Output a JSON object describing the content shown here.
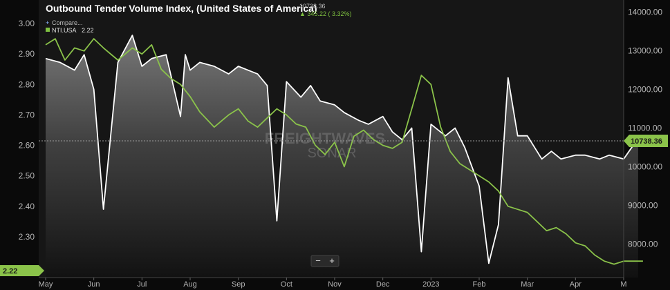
{
  "chart_data": {
    "type": "line",
    "title": "Outbound Tender Volume Index, (United States of America)",
    "header_value": "10738.36",
    "header_change": "345.22 ( 3.32%)",
    "legend": {
      "compare_label": "Compare...",
      "series_label": "NTI.USA",
      "series_value": "2.22"
    },
    "x_ticks": [
      "May",
      "Jun",
      "Jul",
      "Aug",
      "Sep",
      "Oct",
      "Nov",
      "Dec",
      "2023",
      "Feb",
      "Mar",
      "Apr",
      "M"
    ],
    "left_axis": {
      "ticks": [
        "3.00",
        "2.90",
        "2.80",
        "2.70",
        "2.60",
        "2.50",
        "2.40",
        "2.30"
      ],
      "range": [
        2.2,
        3.05
      ]
    },
    "right_axis": {
      "ticks": [
        "14000.00",
        "13000.00",
        "12000.00",
        "11000.00",
        "10000.00",
        "9000.00",
        "8000.00"
      ],
      "range": [
        7400,
        14100
      ]
    },
    "current_left_label": "2.22",
    "current_right_label": "10738.36",
    "watermark_lines": [
      "FREIGHTWAVES",
      "SONAR"
    ],
    "zoom": {
      "minus": "−",
      "plus": "+"
    },
    "series": [
      {
        "axis": "right",
        "x": [
          0,
          0.3,
          0.6,
          0.8,
          1,
          1.2,
          1.5,
          1.8,
          2,
          2.2,
          2.5,
          2.8,
          2.9,
          3,
          3.2,
          3.5,
          3.8,
          4,
          4.2,
          4.4,
          4.6,
          4.8,
          5,
          5.3,
          5.5,
          5.7,
          6,
          6.2,
          6.5,
          6.7,
          7,
          7.2,
          7.4,
          7.6,
          7.8,
          8,
          8.3,
          8.5,
          8.7,
          9,
          9.2,
          9.4,
          9.6,
          9.8,
          10,
          10.3,
          10.5,
          10.7,
          11,
          11.2,
          11.5,
          11.7,
          12,
          12.3
        ],
        "y": [
          12800,
          12700,
          12500,
          12900,
          12000,
          8900,
          12700,
          13400,
          12600,
          12800,
          12900,
          11300,
          12900,
          12500,
          12700,
          12600,
          12400,
          12600,
          12500,
          12400,
          12100,
          8600,
          12200,
          11800,
          12100,
          11700,
          11600,
          11400,
          11200,
          11100,
          11300,
          10900,
          10700,
          11000,
          7800,
          11100,
          10800,
          11000,
          10500,
          9500,
          7500,
          8500,
          12300,
          10800,
          10800,
          10200,
          10400,
          10200,
          10300,
          10300,
          10200,
          10300,
          10200,
          10738
        ]
      },
      {
        "axis": "left",
        "x": [
          0,
          0.2,
          0.4,
          0.6,
          0.8,
          1,
          1.2,
          1.5,
          1.8,
          2,
          2.2,
          2.4,
          2.6,
          2.8,
          3,
          3.2,
          3.5,
          3.8,
          4,
          4.2,
          4.4,
          4.6,
          4.8,
          5,
          5.2,
          5.4,
          5.6,
          5.8,
          6,
          6.2,
          6.4,
          6.6,
          6.8,
          7,
          7.2,
          7.4,
          7.6,
          7.8,
          8,
          8.2,
          8.4,
          8.6,
          8.8,
          9,
          9.2,
          9.4,
          9.6,
          9.8,
          10,
          10.2,
          10.4,
          10.6,
          10.8,
          11,
          11.2,
          11.4,
          11.6,
          11.8,
          12,
          12.2,
          12.4
        ],
        "y": [
          2.93,
          2.95,
          2.88,
          2.92,
          2.91,
          2.95,
          2.92,
          2.88,
          2.92,
          2.9,
          2.93,
          2.85,
          2.82,
          2.8,
          2.76,
          2.71,
          2.66,
          2.7,
          2.72,
          2.68,
          2.66,
          2.69,
          2.72,
          2.7,
          2.67,
          2.66,
          2.6,
          2.57,
          2.61,
          2.53,
          2.63,
          2.65,
          2.62,
          2.6,
          2.59,
          2.61,
          2.72,
          2.83,
          2.8,
          2.66,
          2.58,
          2.54,
          2.52,
          2.5,
          2.48,
          2.45,
          2.4,
          2.39,
          2.38,
          2.35,
          2.32,
          2.33,
          2.31,
          2.28,
          2.27,
          2.24,
          2.22,
          2.21,
          2.22,
          2.22,
          2.22
        ]
      }
    ]
  }
}
